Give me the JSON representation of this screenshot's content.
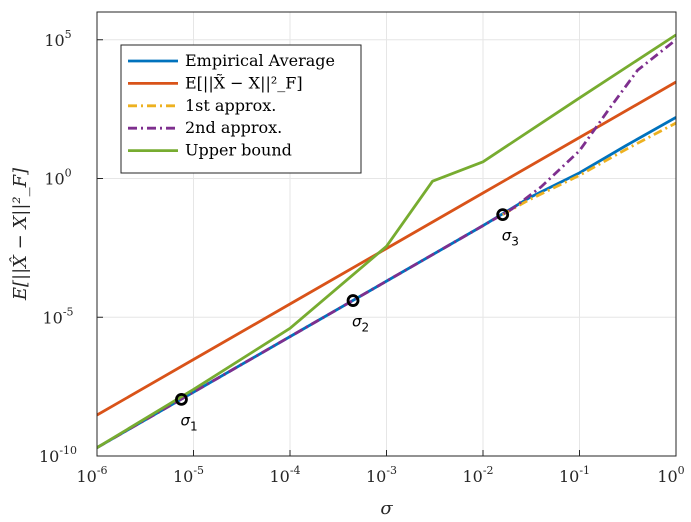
{
  "chart_data": {
    "type": "line",
    "xscale": "log",
    "yscale": "log",
    "xlim": [
      1e-06,
      1
    ],
    "ylim": [
      1e-10,
      1000000.0
    ],
    "xlabel": "σ",
    "ylabel": "E[||X̂ − X||²_F]",
    "grid": true,
    "legend_position": "top-left",
    "x_ticks": [
      {
        "base": "10",
        "exp": "-6",
        "value": 1e-06
      },
      {
        "base": "10",
        "exp": "-5",
        "value": 1e-05
      },
      {
        "base": "10",
        "exp": "-4",
        "value": 0.0001
      },
      {
        "base": "10",
        "exp": "-3",
        "value": 0.001
      },
      {
        "base": "10",
        "exp": "-2",
        "value": 0.01
      },
      {
        "base": "10",
        "exp": "-1",
        "value": 0.1
      },
      {
        "base": "10",
        "exp": "0",
        "value": 1
      }
    ],
    "y_ticks": [
      {
        "base": "10",
        "exp": "-10",
        "value": 1e-10
      },
      {
        "base": "10",
        "exp": "-5",
        "value": 1e-05
      },
      {
        "base": "10",
        "exp": "0",
        "value": 1
      },
      {
        "base": "10",
        "exp": "5",
        "value": 100000.0
      }
    ],
    "series": [
      {
        "name": "Empirical Average",
        "color": "#0072BD",
        "dash": "solid",
        "x": [
          1e-06,
          1e-05,
          0.0001,
          0.001,
          0.01,
          0.03,
          0.1,
          0.3,
          1
        ],
        "y": [
          2e-10,
          2e-08,
          2e-06,
          0.0002,
          0.02,
          0.2,
          1.6,
          15,
          160
        ]
      },
      {
        "name": "E[||X̃ − X||²_F]",
        "color": "#D95319",
        "dash": "solid",
        "x": [
          1e-06,
          1e-05,
          0.0001,
          0.001,
          0.01,
          0.1,
          1
        ],
        "y": [
          3e-09,
          3e-07,
          3e-05,
          0.003,
          0.3,
          30,
          3000
        ]
      },
      {
        "name": "1st approx.",
        "color": "#EDB120",
        "dash": "dashdot",
        "x": [
          0.016,
          0.03,
          0.1,
          0.3,
          1
        ],
        "y": [
          0.05,
          0.17,
          1.3,
          11,
          100
        ]
      },
      {
        "name": "2nd approx.",
        "color": "#7E2F8E",
        "dash": "dashdot",
        "x": [
          1e-06,
          1e-05,
          0.0001,
          0.001,
          0.01,
          0.02,
          0.04,
          0.1,
          0.2,
          0.4,
          1
        ],
        "y": [
          2e-10,
          2e-08,
          2e-06,
          0.0002,
          0.02,
          0.08,
          0.5,
          10,
          300,
          8000,
          100000
        ]
      },
      {
        "name": "Upper bound",
        "color": "#77AC30",
        "dash": "solid",
        "x": [
          1e-06,
          1e-05,
          0.0001,
          0.001,
          0.003,
          0.01,
          0.1,
          1
        ],
        "y": [
          2e-10,
          2.5e-08,
          4e-06,
          0.0036,
          0.8,
          4,
          800,
          150000
        ]
      }
    ],
    "markers": [
      {
        "label": "σ",
        "sub": "1",
        "x": 7.5e-06,
        "y": 1.1e-08
      },
      {
        "label": "σ",
        "sub": "2",
        "x": 0.00045,
        "y": 4e-05
      },
      {
        "label": "σ",
        "sub": "3",
        "x": 0.016,
        "y": 0.05
      }
    ]
  }
}
